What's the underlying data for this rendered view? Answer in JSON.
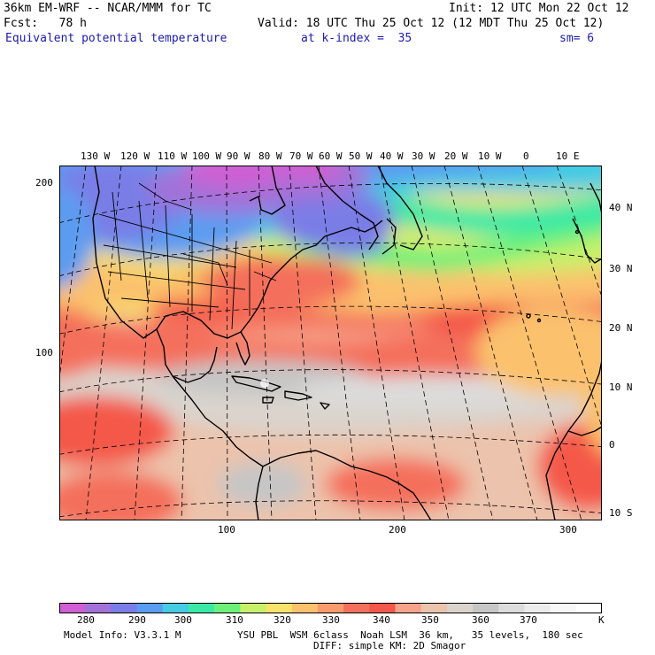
{
  "header": {
    "model_line": "36km EM-WRF -- NCAR/MMM for TC",
    "init_line": "Init: 12 UTC Mon 22 Oct 12",
    "fcst_line": "Fcst:   78 h",
    "valid_line": "Valid: 18 UTC Thu 25 Oct 12 (12 MDT Thu 25 Oct 12)",
    "field_name": "Equivalent potential temperature",
    "level_info": "at k-index =  35",
    "smoothing": "sm= 6"
  },
  "map": {
    "top_lon_labels": [
      "130 W",
      "120 W",
      "110 W",
      "100 W",
      "90 W",
      "80 W",
      "70 W",
      "60 W",
      "50 W",
      "40 W",
      "30 W",
      "20 W",
      "10 W",
      "0",
      "10 E"
    ],
    "right_lat_labels": [
      "40 N",
      "30 N",
      "20 N",
      "10 N",
      "0",
      "10 S"
    ],
    "left_grid_labels": [
      "200",
      "100"
    ],
    "bottom_grid_labels": [
      "100",
      "200",
      "300"
    ]
  },
  "colorbar": {
    "colors": [
      "#cf5fd3",
      "#a272d8",
      "#7a7de6",
      "#5b9cf0",
      "#45cbe3",
      "#3be9a6",
      "#6cf07a",
      "#c8f06a",
      "#f6e36b",
      "#fbc16d",
      "#f79b6d",
      "#f4705c",
      "#f4584a",
      "#f6a389",
      "#ecc3ac",
      "#dad4cd",
      "#c6c6c6",
      "#dcdcdc",
      "#ececec",
      "#f8f8f8",
      "#ffffff"
    ],
    "labels": [
      "280",
      "290",
      "300",
      "310",
      "320",
      "330",
      "340",
      "350",
      "360",
      "370"
    ],
    "unit": "K"
  },
  "footer": {
    "model_info": "Model Info: V3.3.1 M",
    "physics_line1": "YSU PBL  WSM 6class  Noah LSM  36 km,   35 levels,  180 sec",
    "physics_line2": "DIFF: simple KM: 2D Smagor"
  }
}
